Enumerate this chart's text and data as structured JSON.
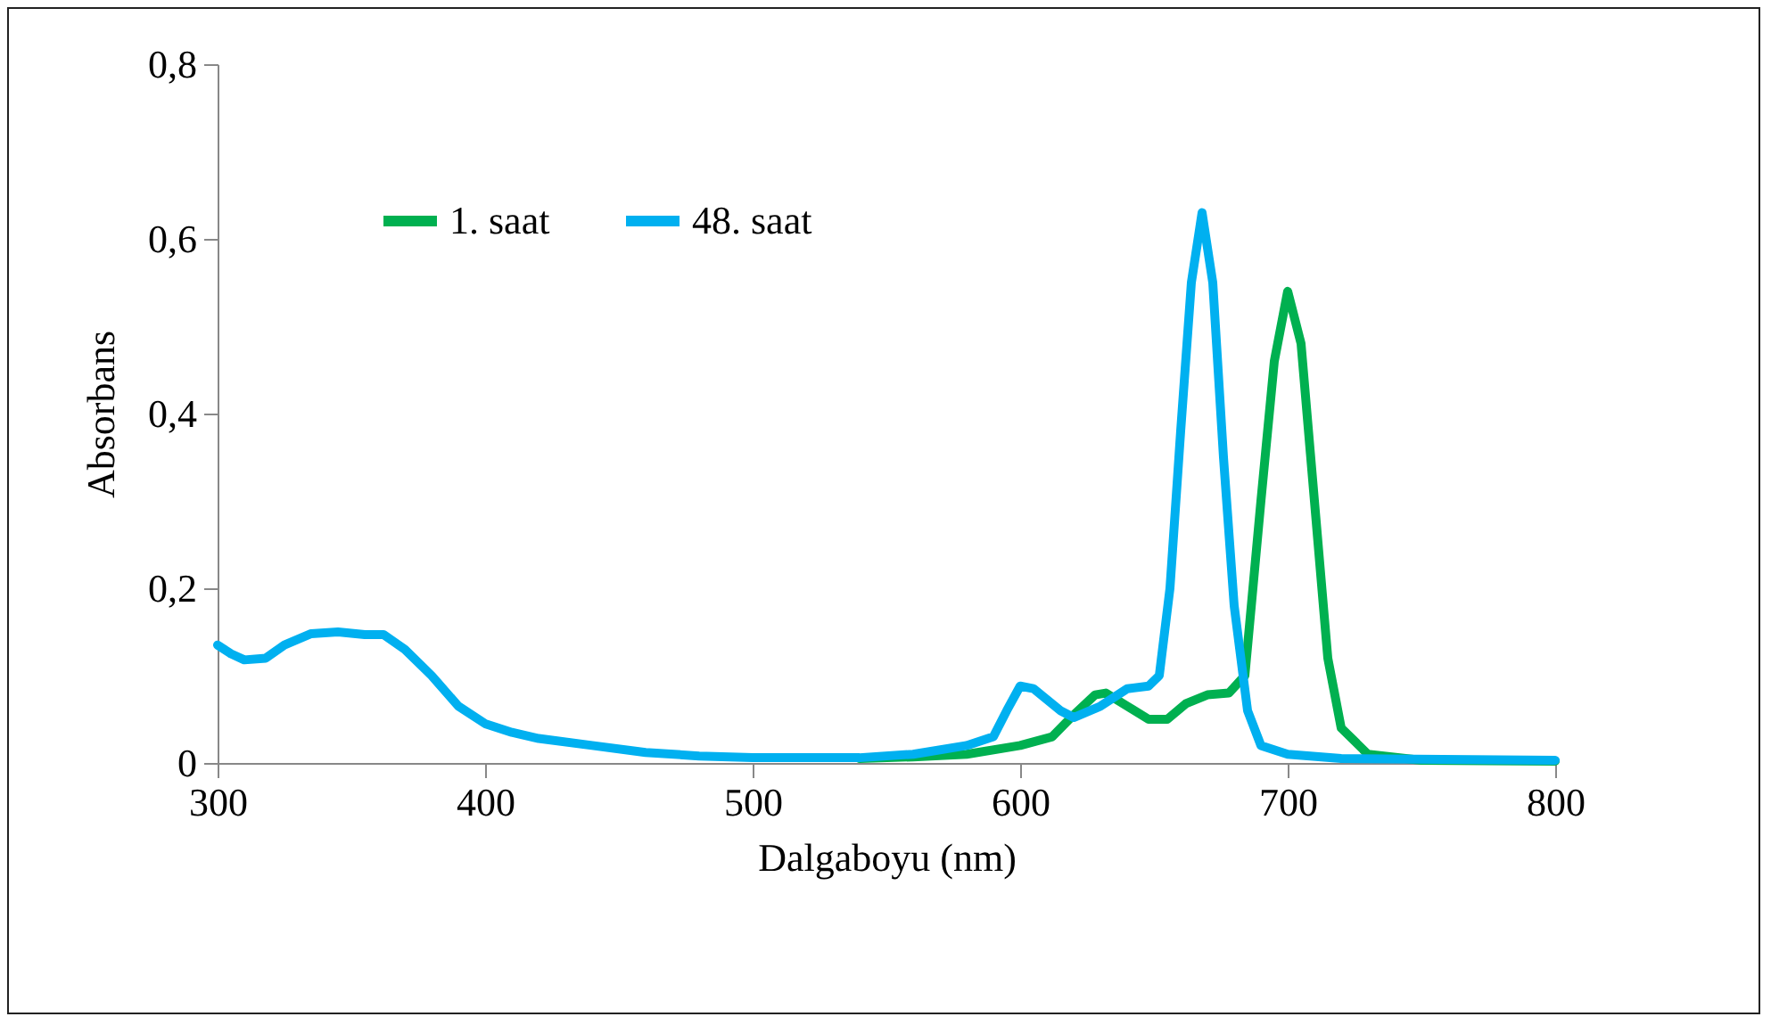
{
  "chart_data": {
    "type": "line",
    "xlabel": "Dalgaboyu  (nm)",
    "ylabel": "Absorbans",
    "xlim": [
      300,
      800
    ],
    "xticks": [
      300,
      400,
      500,
      600,
      700,
      800
    ],
    "ylim": [
      0,
      0.8
    ],
    "yticks": [
      {
        "value": 0,
        "label": "0"
      },
      {
        "value": 0.2,
        "label": "0,2"
      },
      {
        "value": 0.4,
        "label": "0,4"
      },
      {
        "value": 0.6,
        "label": "0,6"
      },
      {
        "value": 0.8,
        "label": "0,8"
      }
    ],
    "grid": false,
    "legend": "top left",
    "marker": "none",
    "line_style": "solid",
    "series": [
      {
        "name": "1. saat",
        "color": "#00b050",
        "x": [
          540,
          560,
          580,
          600,
          612,
          620,
          628,
          632,
          640,
          648,
          655,
          662,
          670,
          678,
          684,
          690,
          695,
          700,
          705,
          710,
          715,
          720,
          730,
          750,
          800
        ],
        "values": [
          0.005,
          0.007,
          0.01,
          0.02,
          0.03,
          0.055,
          0.078,
          0.08,
          0.065,
          0.05,
          0.05,
          0.068,
          0.078,
          0.08,
          0.1,
          0.3,
          0.46,
          0.54,
          0.48,
          0.3,
          0.12,
          0.04,
          0.01,
          0.003,
          0.002
        ]
      },
      {
        "name": "48. saat",
        "color": "#00b0f0",
        "x": [
          300,
          305,
          310,
          318,
          325,
          335,
          345,
          355,
          362,
          370,
          380,
          390,
          400,
          410,
          420,
          440,
          460,
          480,
          500,
          540,
          560,
          580,
          590,
          595,
          600,
          605,
          615,
          620,
          630,
          640,
          648,
          652,
          656,
          660,
          664,
          668,
          672,
          676,
          680,
          685,
          690,
          700,
          720,
          800
        ],
        "values": [
          0.135,
          0.125,
          0.118,
          0.12,
          0.135,
          0.148,
          0.15,
          0.147,
          0.147,
          0.13,
          0.1,
          0.065,
          0.045,
          0.035,
          0.028,
          0.02,
          0.012,
          0.008,
          0.006,
          0.006,
          0.01,
          0.02,
          0.03,
          0.06,
          0.088,
          0.085,
          0.06,
          0.052,
          0.065,
          0.085,
          0.088,
          0.1,
          0.2,
          0.38,
          0.55,
          0.63,
          0.55,
          0.35,
          0.18,
          0.06,
          0.02,
          0.01,
          0.005,
          0.003
        ]
      }
    ]
  }
}
